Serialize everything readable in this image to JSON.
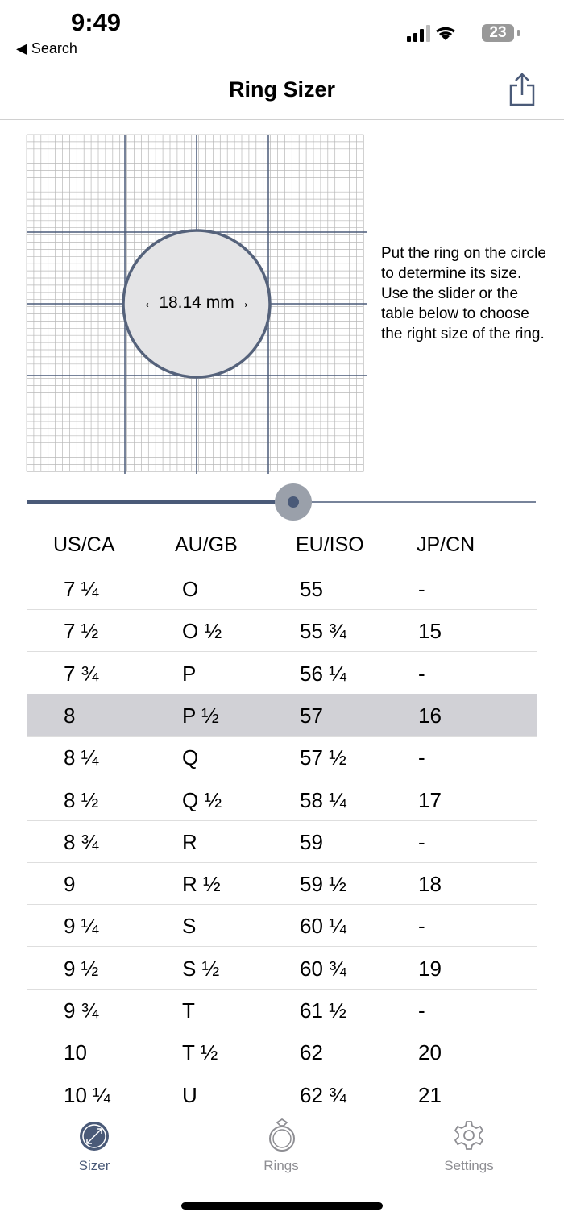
{
  "status_bar": {
    "time": "9:49",
    "back": "◀ Search",
    "battery": "23"
  },
  "header": {
    "title": "Ring Sizer"
  },
  "sizer": {
    "measurement": "←18.14 mm→",
    "description": "Put the ring on the circle to determine its size. Use the slider or the table below to choose the right size of the ring."
  },
  "table": {
    "columns": [
      "US/CA",
      "AU/GB",
      "EU/ISO",
      "JP/CN"
    ],
    "rows": [
      {
        "cells": [
          "7 ¼",
          "O",
          "55",
          "-"
        ]
      },
      {
        "cells": [
          "7 ½",
          "O ½",
          "55 ¾",
          "15"
        ]
      },
      {
        "cells": [
          "7 ¾",
          "P",
          "56 ¼",
          "-"
        ]
      },
      {
        "cells": [
          "8",
          "P ½",
          "57",
          "16"
        ],
        "selected": true
      },
      {
        "cells": [
          "8 ¼",
          "Q",
          "57 ½",
          "-"
        ]
      },
      {
        "cells": [
          "8 ½",
          "Q ½",
          "58 ¼",
          "17"
        ]
      },
      {
        "cells": [
          "8 ¾",
          "R",
          "59",
          "-"
        ]
      },
      {
        "cells": [
          "9",
          "R ½",
          "59 ½",
          "18"
        ]
      },
      {
        "cells": [
          "9 ¼",
          "S",
          "60 ¼",
          "-"
        ]
      },
      {
        "cells": [
          "9 ½",
          "S ½",
          "60 ¾",
          "19"
        ]
      },
      {
        "cells": [
          "9 ¾",
          "T",
          "61 ½",
          "-"
        ]
      },
      {
        "cells": [
          "10",
          "T ½",
          "62",
          "20"
        ]
      },
      {
        "cells": [
          "10 ¼",
          "U",
          "62 ¾",
          "21"
        ]
      }
    ]
  },
  "tab_bar": {
    "tabs": [
      "Sizer",
      "Rings",
      "Settings"
    ]
  }
}
